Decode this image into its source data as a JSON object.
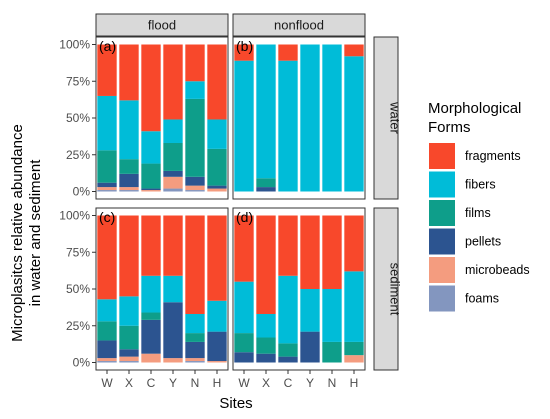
{
  "chart_data": {
    "type": "bar",
    "stacked": true,
    "ylabel_lines": [
      "Microplasitcs relative abundance",
      "in water and sediment"
    ],
    "xlabel": "Sites",
    "x_categories": [
      "W",
      "X",
      "C",
      "Y",
      "N",
      "H"
    ],
    "y_ticks": [
      "0%",
      "25%",
      "50%",
      "75%",
      "100%"
    ],
    "ylim": [
      0,
      100
    ],
    "columns": [
      "flood",
      "nonflood"
    ],
    "rows": [
      "water",
      "sediment"
    ],
    "legend": {
      "title_lines": [
        "Morphological",
        "Forms"
      ],
      "placement": "right",
      "items": [
        {
          "key": "fragments",
          "label": "fragments",
          "color": "#F8482B"
        },
        {
          "key": "fibers",
          "label": "fibers",
          "color": "#00BCD8"
        },
        {
          "key": "films",
          "label": "films",
          "color": "#0E9E8A"
        },
        {
          "key": "pellets",
          "label": "pellets",
          "color": "#2C5490"
        },
        {
          "key": "microbeads",
          "label": "microbeads",
          "color": "#F49C7F"
        },
        {
          "key": "foams",
          "label": "foams",
          "color": "#8396BF"
        }
      ]
    },
    "panels": [
      {
        "tag": "(a)",
        "column": "flood",
        "row": "water",
        "bars": [
          {
            "site": "W",
            "foams": 1,
            "microbeads": 2,
            "pellets": 3,
            "films": 22,
            "fibers": 37,
            "fragments": 35
          },
          {
            "site": "X",
            "foams": 1,
            "microbeads": 2,
            "pellets": 9,
            "films": 10,
            "fibers": 40,
            "fragments": 38
          },
          {
            "site": "C",
            "foams": 0,
            "microbeads": 1,
            "pellets": 1,
            "films": 17,
            "fibers": 22,
            "fragments": 59
          },
          {
            "site": "Y",
            "foams": 2,
            "microbeads": 8,
            "pellets": 4,
            "films": 19,
            "fibers": 16,
            "fragments": 51
          },
          {
            "site": "N",
            "foams": 1,
            "microbeads": 3,
            "pellets": 6,
            "films": 53,
            "fibers": 12,
            "fragments": 25
          },
          {
            "site": "H",
            "foams": 0,
            "microbeads": 2,
            "pellets": 2,
            "films": 25,
            "fibers": 20,
            "fragments": 51
          }
        ]
      },
      {
        "tag": "(b)",
        "column": "nonflood",
        "row": "water",
        "bars": [
          {
            "site": "W",
            "foams": 0,
            "microbeads": 0,
            "pellets": 0,
            "films": 0,
            "fibers": 89,
            "fragments": 11
          },
          {
            "site": "X",
            "foams": 0,
            "microbeads": 0,
            "pellets": 3,
            "films": 6,
            "fibers": 91,
            "fragments": 0
          },
          {
            "site": "C",
            "foams": 0,
            "microbeads": 0,
            "pellets": 0,
            "films": 0,
            "fibers": 89,
            "fragments": 11
          },
          {
            "site": "Y",
            "foams": 0,
            "microbeads": 0,
            "pellets": 0,
            "films": 0,
            "fibers": 100,
            "fragments": 0
          },
          {
            "site": "N",
            "foams": 0,
            "microbeads": 0,
            "pellets": 0,
            "films": 0,
            "fibers": 100,
            "fragments": 0
          },
          {
            "site": "H",
            "foams": 0,
            "microbeads": 0,
            "pellets": 0,
            "films": 0,
            "fibers": 92,
            "fragments": 8
          }
        ]
      },
      {
        "tag": "(c)",
        "column": "flood",
        "row": "sediment",
        "bars": [
          {
            "site": "W",
            "foams": 1,
            "microbeads": 2,
            "pellets": 12,
            "films": 13,
            "fibers": 15,
            "fragments": 57
          },
          {
            "site": "X",
            "foams": 1,
            "microbeads": 3,
            "pellets": 5,
            "films": 16,
            "fibers": 20,
            "fragments": 55
          },
          {
            "site": "C",
            "foams": 0,
            "microbeads": 6,
            "pellets": 23,
            "films": 5,
            "fibers": 25,
            "fragments": 41
          },
          {
            "site": "Y",
            "foams": 0,
            "microbeads": 3,
            "pellets": 38,
            "films": 0,
            "fibers": 18,
            "fragments": 41
          },
          {
            "site": "N",
            "foams": 1,
            "microbeads": 2,
            "pellets": 11,
            "films": 6,
            "fibers": 13,
            "fragments": 67
          },
          {
            "site": "H",
            "foams": 0,
            "microbeads": 1,
            "pellets": 20,
            "films": 0,
            "fibers": 21,
            "fragments": 58
          }
        ]
      },
      {
        "tag": "(d)",
        "column": "nonflood",
        "row": "sediment",
        "bars": [
          {
            "site": "W",
            "foams": 0,
            "microbeads": 0,
            "pellets": 7,
            "films": 13,
            "fibers": 35,
            "fragments": 45
          },
          {
            "site": "X",
            "foams": 0,
            "microbeads": 0,
            "pellets": 6,
            "films": 11,
            "fibers": 16,
            "fragments": 67
          },
          {
            "site": "C",
            "foams": 0,
            "microbeads": 0,
            "pellets": 4,
            "films": 9,
            "fibers": 46,
            "fragments": 41
          },
          {
            "site": "Y",
            "foams": 0,
            "microbeads": 0,
            "pellets": 21,
            "films": 0,
            "fibers": 29,
            "fragments": 50
          },
          {
            "site": "N",
            "foams": 0,
            "microbeads": 0,
            "pellets": 0,
            "films": 14,
            "fibers": 36,
            "fragments": 50
          },
          {
            "site": "H",
            "foams": 0,
            "microbeads": 5,
            "pellets": 0,
            "films": 9,
            "fibers": 48,
            "fragments": 38
          }
        ]
      }
    ]
  }
}
